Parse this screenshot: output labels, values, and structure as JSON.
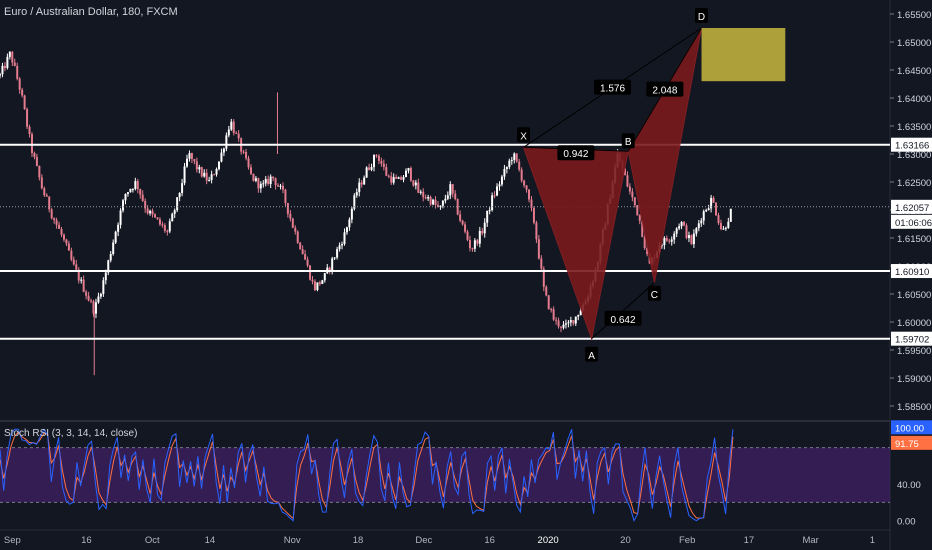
{
  "header": {
    "symbol_title": "Euro / Australian Dollar, 180, FXCM",
    "indicator_title": "Stoch RSI (3, 3, 14, 14, close)"
  },
  "colors": {
    "background": "#131722",
    "candle_up": "#ffffff",
    "candle_down": "#e57c8e",
    "harmonic_fill": "#7a1a1d",
    "target_box": "#b5a73b",
    "stoch_band": "#3a1f5c",
    "stoch_k": "#2962ff",
    "stoch_d": "#ff7043"
  },
  "chart_data": [
    {
      "type": "candlestick",
      "title": "Euro / Australian Dollar, 180, FXCM",
      "ylim": [
        1.5825,
        1.6575
      ],
      "y_ticks": [
        "1.65500",
        "1.65000",
        "1.64500",
        "1.64000",
        "1.63500",
        "1.63000",
        "1.62500",
        "1.62000",
        "1.61500",
        "1.61000",
        "1.60500",
        "1.60000",
        "1.59500",
        "1.59000",
        "1.58500"
      ],
      "x_ticks": [
        "Sep",
        "16",
        "Oct",
        "14",
        "Nov",
        "18",
        "Dec",
        "16",
        "2020",
        "20",
        "Feb",
        "17",
        "Mar",
        "1"
      ],
      "price_path": [
        [
          0,
          1.644
        ],
        [
          1,
          1.648
        ],
        [
          2,
          1.641
        ],
        [
          3,
          1.631
        ],
        [
          4,
          1.624
        ],
        [
          5,
          1.619
        ],
        [
          6,
          1.615
        ],
        [
          7,
          1.61
        ],
        [
          8,
          1.606
        ],
        [
          9,
          1.602
        ],
        [
          10,
          1.608
        ],
        [
          11,
          1.616
        ],
        [
          12,
          1.623
        ],
        [
          13,
          1.625
        ],
        [
          14,
          1.62
        ],
        [
          15,
          1.618
        ],
        [
          16,
          1.616
        ],
        [
          17,
          1.622
        ],
        [
          18,
          1.63
        ],
        [
          19,
          1.627
        ],
        [
          20,
          1.625
        ],
        [
          21,
          1.629
        ],
        [
          22,
          1.636
        ],
        [
          23,
          1.631
        ],
        [
          24,
          1.626
        ],
        [
          25,
          1.624
        ],
        [
          26,
          1.626
        ],
        [
          27,
          1.623
        ],
        [
          28,
          1.617
        ],
        [
          29,
          1.612
        ],
        [
          30,
          1.606
        ],
        [
          31,
          1.608
        ],
        [
          32,
          1.612
        ],
        [
          33,
          1.616
        ],
        [
          34,
          1.623
        ],
        [
          35,
          1.627
        ],
        [
          36,
          1.63
        ],
        [
          37,
          1.626
        ],
        [
          38,
          1.625
        ],
        [
          39,
          1.627
        ],
        [
          40,
          1.623
        ],
        [
          41,
          1.622
        ],
        [
          42,
          1.62
        ],
        [
          43,
          1.624
        ],
        [
          44,
          1.618
        ],
        [
          45,
          1.613
        ],
        [
          46,
          1.616
        ],
        [
          47,
          1.622
        ],
        [
          48,
          1.626
        ],
        [
          49,
          1.63
        ],
        [
          50,
          1.625
        ],
        [
          51,
          1.618
        ],
        [
          52,
          1.605
        ],
        [
          53,
          1.6
        ],
        [
          54,
          1.599
        ],
        [
          55,
          1.601
        ],
        [
          56,
          1.604
        ],
        [
          57,
          1.61
        ],
        [
          58,
          1.62
        ],
        [
          59,
          1.63
        ],
        [
          60,
          1.624
        ],
        [
          61,
          1.619
        ],
        [
          62,
          1.61
        ],
        [
          63,
          1.614
        ],
        [
          64,
          1.615
        ],
        [
          65,
          1.618
        ],
        [
          66,
          1.614
        ],
        [
          67,
          1.619
        ],
        [
          68,
          1.622
        ],
        [
          69,
          1.616
        ],
        [
          70,
          1.6206
        ]
      ],
      "horizontal_levels": [
        {
          "price": 1.63166,
          "label": "1.63166"
        },
        {
          "price": 1.6091,
          "label": "1.60910"
        },
        {
          "price": 1.59702,
          "label": "1.59702"
        }
      ],
      "current_price": {
        "price": 1.62057,
        "label": "1.62057",
        "countdown": "01:06:06"
      },
      "harmonic_pattern": {
        "points": [
          {
            "name": "X",
            "price": 1.6312,
            "t": 50
          },
          {
            "name": "A",
            "price": 1.597,
            "t": 56.5
          },
          {
            "name": "B",
            "price": 1.6305,
            "t": 60
          },
          {
            "name": "C",
            "price": 1.607,
            "t": 62.5
          },
          {
            "name": "D",
            "price": 1.6525,
            "t": 67
          }
        ],
        "ratios": [
          {
            "text": "0.942",
            "between": "XB"
          },
          {
            "text": "0.642",
            "between": "AC"
          },
          {
            "text": "1.576",
            "between": "XD"
          },
          {
            "text": "2.048",
            "between": "BD"
          }
        ],
        "target_zone": {
          "price_top": 1.6525,
          "price_bottom": 1.643,
          "t_start": 67,
          "t_end": 75
        }
      }
    },
    {
      "type": "line",
      "title": "Stoch RSI (3, 3, 14, 14, close)",
      "ylim": [
        -8,
        108
      ],
      "y_ticks": [
        "100.00",
        "40.00",
        "0.00"
      ],
      "band": [
        20,
        80
      ],
      "series": [
        {
          "values": [
            100.0,
            91.75
          ]
        }
      ],
      "last_values": [
        "100.00",
        "91.75"
      ]
    }
  ]
}
